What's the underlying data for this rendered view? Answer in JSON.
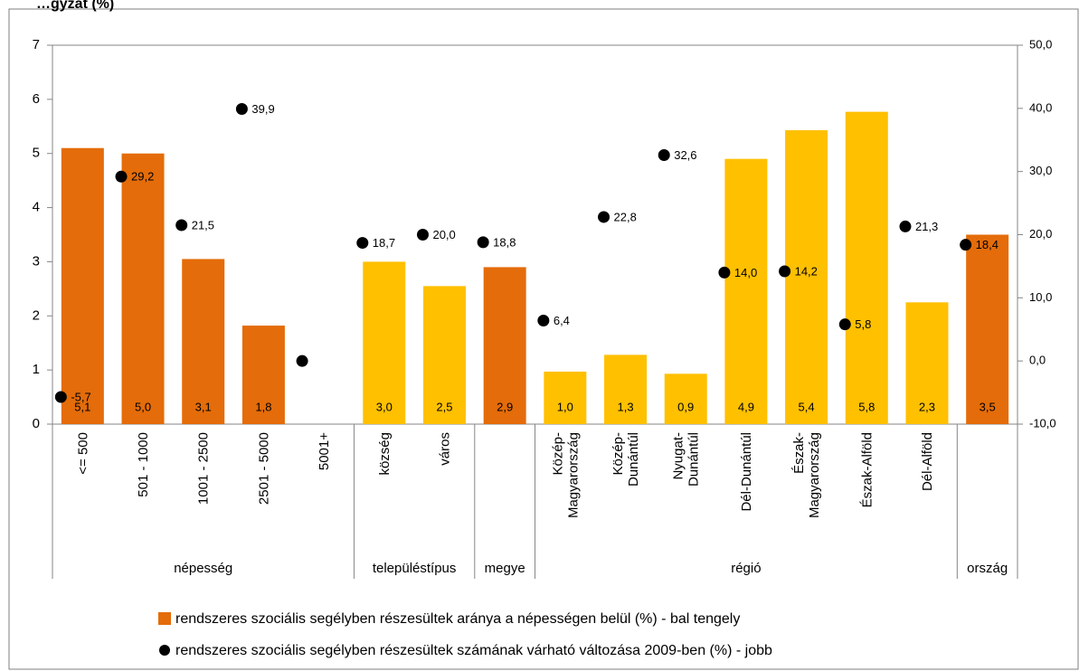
{
  "chart_data": {
    "type": "bar",
    "title": "…gyzat (%)",
    "categories": [
      [
        "<= 500"
      ],
      [
        "501 - 1000"
      ],
      [
        "1001 - 2500"
      ],
      [
        "2501 - 5000"
      ],
      [
        "5001+"
      ],
      [
        "község"
      ],
      [
        "város"
      ],
      [],
      [
        "Közép-",
        "Magyarország"
      ],
      [
        "Közép-",
        "Dunántúl"
      ],
      [
        "Nyugat-",
        "Dunántúl"
      ],
      [
        "Dél-Dunántúl"
      ],
      [
        "Észak-",
        "Magyarország"
      ],
      [
        "Észak-Alföld"
      ],
      [
        "Dél-Alföld"
      ],
      []
    ],
    "groups": [
      {
        "name": "népesség",
        "start": 0,
        "end": 4
      },
      {
        "name": "településtípus",
        "start": 5,
        "end": 6
      },
      {
        "name": "megye",
        "start": 7,
        "end": 7
      },
      {
        "name": "régió",
        "start": 8,
        "end": 14
      },
      {
        "name": "ország",
        "start": 15,
        "end": 15
      }
    ],
    "left_axis": {
      "min": 0,
      "max": 7,
      "step": 1,
      "ticks": [
        "0",
        "1",
        "2",
        "3",
        "4",
        "5",
        "6",
        "7"
      ]
    },
    "right_axis": {
      "min": -10,
      "max": 50,
      "step": 10,
      "ticks": [
        "-10,0",
        "0,0",
        "10,0",
        "20,0",
        "30,0",
        "40,0",
        "50,0"
      ]
    },
    "series": [
      {
        "name": "rendszeres szociális segélyben részesültek aránya a népességen belül (%) - bal tengely",
        "kind": "bar",
        "axis": "left",
        "values": [
          5.1,
          5.0,
          3.05,
          1.82,
          null,
          3.0,
          2.55,
          2.9,
          0.97,
          1.28,
          0.93,
          4.9,
          5.43,
          5.77,
          2.25,
          3.5
        ],
        "labels": [
          "5,1",
          "5,0",
          "3,1",
          "1,8",
          null,
          "3,0",
          "2,5",
          "2,9",
          "1,0",
          "1,3",
          "0,9",
          "4,9",
          "5,4",
          "5,8",
          "2,3",
          "3,5"
        ],
        "colors": [
          "#e46c0a",
          "#e46c0a",
          "#e46c0a",
          "#e46c0a",
          "#e46c0a",
          "#ffc000",
          "#ffc000",
          "#e46c0a",
          "#ffc000",
          "#ffc000",
          "#ffc000",
          "#ffc000",
          "#ffc000",
          "#ffc000",
          "#ffc000",
          "#e46c0a"
        ]
      },
      {
        "name": "rendszeres szociális segélyben részesültek számának várható változása 2009-ben (%) - jobb",
        "kind": "scatter",
        "axis": "right",
        "values": [
          -5.7,
          29.2,
          21.5,
          39.9,
          0.0,
          18.7,
          20.0,
          18.8,
          6.4,
          22.8,
          32.6,
          14.0,
          14.2,
          5.8,
          21.3,
          18.4
        ],
        "labels": [
          "-5,7",
          "29,2",
          "21,5",
          "39,9",
          null,
          "18,7",
          "20,0",
          "18,8",
          "6,4",
          "22,8",
          "32,6",
          "14,0",
          "14,2",
          "5,8",
          "21,3",
          "18,4"
        ],
        "color": "#000000"
      }
    ],
    "legend_position": "bottom"
  }
}
